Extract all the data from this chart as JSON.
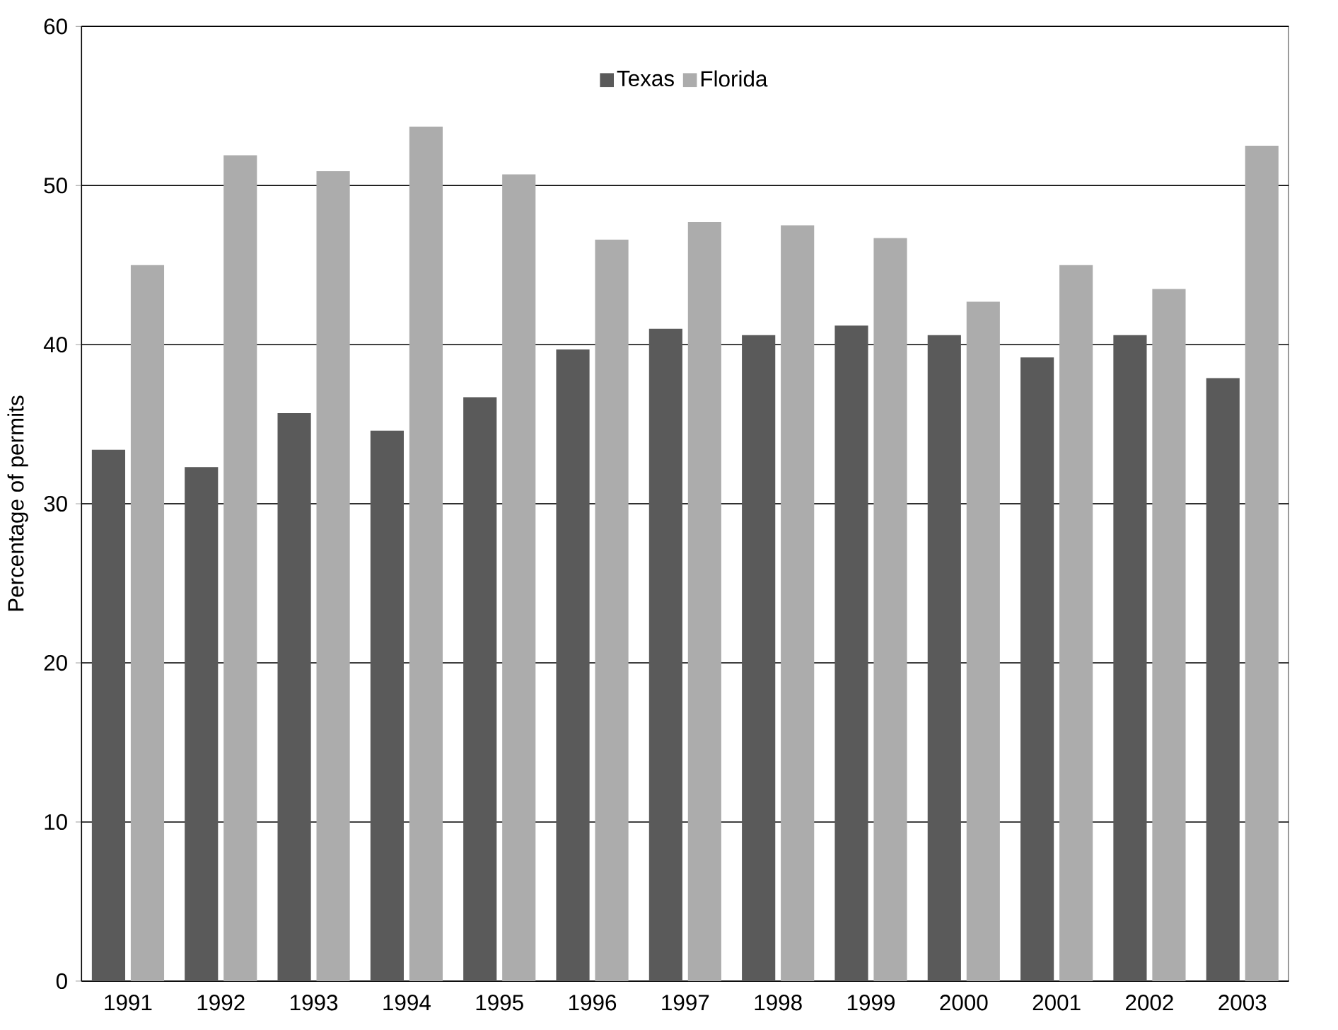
{
  "chart_data": {
    "type": "bar",
    "ylabel": "Percentage of permits",
    "categories": [
      "1991",
      "1992",
      "1993",
      "1994",
      "1995",
      "1996",
      "1997",
      "1998",
      "1999",
      "2000",
      "2001",
      "2002",
      "2003"
    ],
    "series": [
      {
        "name": "Texas",
        "color": "#5a5a5a",
        "values": [
          33.4,
          32.3,
          35.7,
          34.6,
          36.7,
          39.7,
          41.0,
          40.6,
          41.2,
          40.6,
          39.2,
          40.6,
          37.9
        ]
      },
      {
        "name": "Florida",
        "color": "#acacac",
        "values": [
          45.0,
          51.9,
          50.9,
          53.7,
          50.7,
          46.6,
          47.7,
          47.5,
          46.7,
          42.7,
          45.0,
          43.5,
          52.5
        ]
      }
    ],
    "ylim": [
      0,
      60
    ],
    "yticks": [
      0,
      10,
      20,
      30,
      40,
      50,
      60
    ],
    "grid": "y",
    "legend": "top"
  }
}
